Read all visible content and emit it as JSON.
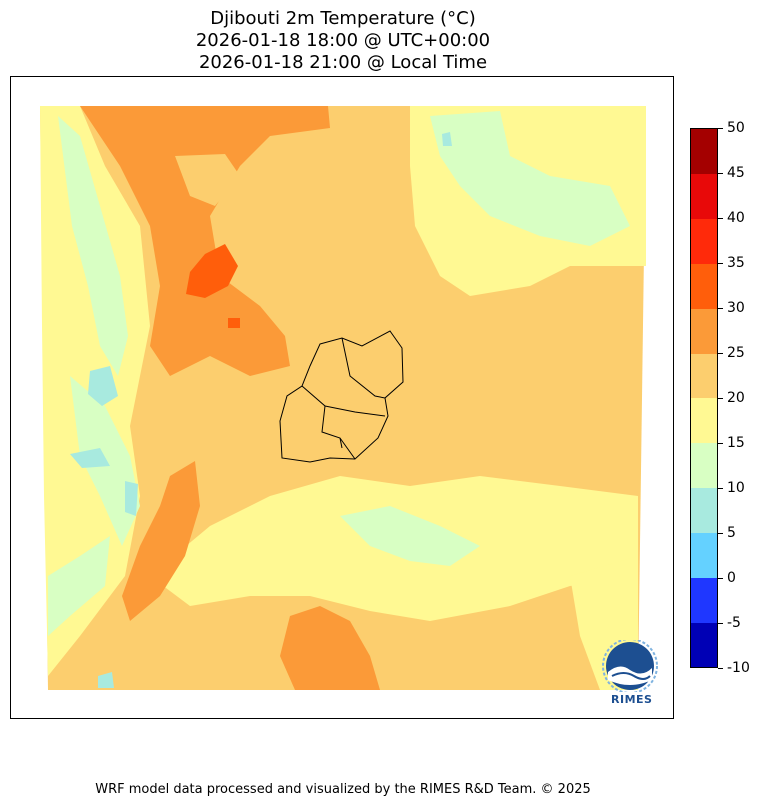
{
  "title": {
    "line1": "Djibouti 2m Temperature (°C)",
    "line2": "2026-01-18 18:00 @ UTC+00:00",
    "line3": "2026-01-18 21:00 @ Local Time"
  },
  "colorbar": {
    "levels": [
      -10,
      -5,
      0,
      5,
      10,
      15,
      20,
      25,
      30,
      35,
      40,
      45,
      50
    ],
    "tick_labels": [
      "50",
      "45",
      "40",
      "35",
      "30",
      "25",
      "20",
      "15",
      "10",
      "5",
      "0",
      "-5",
      "-10"
    ],
    "colors": [
      "#0000b5",
      "#1f37ff",
      "#64d1ff",
      "#a8eadf",
      "#d8ffc3",
      "#fff993",
      "#fcce6e",
      "#fb9a38",
      "#ff5e0b",
      "#ff2a0a",
      "#e80909",
      "#a40000"
    ]
  },
  "logo": {
    "text": "RIMES"
  },
  "footer": "WRF model data processed and visualized by the RIMES R&D Team. © 2025"
}
